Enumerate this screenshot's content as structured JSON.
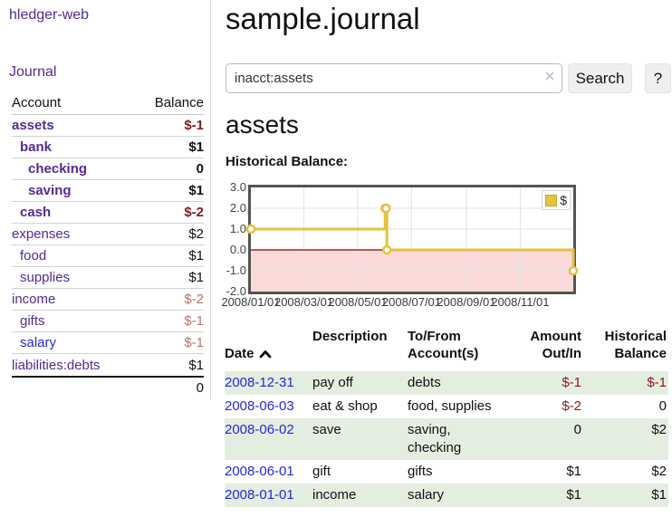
{
  "app": {
    "title": "hledger-web",
    "nav_journal": "Journal"
  },
  "colors": {
    "accent_purple": "#552a94",
    "link_blue": "#2428dc",
    "negative_strong": "#8b1a1a",
    "negative_soft": "#bd7070",
    "row_green": "#e4eee0",
    "chart_gold": "#e6c23f",
    "chart_negative_fill": "#fbdada",
    "chart_zero_line": "#8b0000",
    "grid": "#e3e3e3",
    "chart_border": "#545454"
  },
  "sidebar": {
    "header": {
      "account": "Account",
      "balance": "Balance"
    },
    "accounts": [
      {
        "name": "assets",
        "balance": "$-1",
        "indent": 1,
        "bold": true,
        "balance_style": "neg-strong"
      },
      {
        "name": "bank",
        "balance": "$1",
        "indent": 2,
        "bold": true,
        "balance_style": "normal"
      },
      {
        "name": "checking",
        "balance": "0",
        "indent": 3,
        "bold": true,
        "balance_style": "normal"
      },
      {
        "name": "saving",
        "balance": "$1",
        "indent": 3,
        "bold": true,
        "balance_style": "normal"
      },
      {
        "name": "cash",
        "balance": "$-2",
        "indent": 2,
        "bold": true,
        "balance_style": "neg-strong"
      },
      {
        "name": "expenses",
        "balance": "$2",
        "indent": 1,
        "bold": false,
        "balance_style": "normal"
      },
      {
        "name": "food",
        "balance": "$1",
        "indent": 2,
        "bold": false,
        "balance_style": "normal"
      },
      {
        "name": "supplies",
        "balance": "$1",
        "indent": 2,
        "bold": false,
        "balance_style": "normal"
      },
      {
        "name": "income",
        "balance": "$-2",
        "indent": 1,
        "bold": false,
        "balance_style": "neg-soft"
      },
      {
        "name": "gifts",
        "balance": "$-1",
        "indent": 2,
        "bold": false,
        "balance_style": "neg-soft"
      },
      {
        "name": "salary",
        "balance": "$-1",
        "indent": 2,
        "bold": false,
        "balance_style": "neg-soft",
        "link_style": "unvisited"
      },
      {
        "name": "liabilities:debts",
        "balance": "$1",
        "indent": 1,
        "bold": false,
        "balance_style": "normal"
      }
    ],
    "total": "0"
  },
  "header": {
    "title": "sample.journal"
  },
  "search": {
    "query": "inacct:assets",
    "clear_icon": "×",
    "button": "Search",
    "help_button": "?"
  },
  "account_page": {
    "heading": "assets",
    "chart_label": "Historical Balance:"
  },
  "chart_data": {
    "type": "line",
    "step": true,
    "title": "Historical Balance",
    "x_range": [
      "2008-01-01",
      "2008-12-31"
    ],
    "ylim": [
      -2,
      3
    ],
    "yticks": [
      "3.0",
      "2.0",
      "1.0",
      "0.0",
      "-1.0",
      "-2.0"
    ],
    "xticks": [
      "2008/01/01",
      "2008/03/01",
      "2008/05/01",
      "2008/07/01",
      "2008/09/01",
      "2008/11/01"
    ],
    "series": [
      {
        "name": "$",
        "color": "#e6c23f",
        "points": [
          [
            "2008-01-01",
            1
          ],
          [
            "2008-06-01",
            2
          ],
          [
            "2008-06-02",
            2
          ],
          [
            "2008-06-03",
            0
          ],
          [
            "2008-12-31",
            -1
          ]
        ]
      }
    ],
    "legend": {
      "label": "$",
      "position": "top-right"
    },
    "negative_region_fill": "#fbdada",
    "zero_line_color": "#8b0000",
    "grid": true
  },
  "register": {
    "headers": {
      "date": "Date",
      "description": "Description",
      "account": "To/From\nAccount(s)",
      "amount": "Amount\nOut/In",
      "balance": "Historical\nBalance"
    },
    "rows": [
      {
        "date": "2008-12-31",
        "description": "pay off",
        "accounts": "debts",
        "amount": "$-1",
        "amount_negative": true,
        "balance": "$-1",
        "balance_negative": true
      },
      {
        "date": "2008-06-03",
        "description": "eat & shop",
        "accounts": "food, supplies",
        "amount": "$-2",
        "amount_negative": true,
        "balance": "0",
        "balance_negative": false
      },
      {
        "date": "2008-06-02",
        "description": "save",
        "accounts": "saving,\nchecking",
        "amount": "0",
        "amount_negative": false,
        "balance": "$2",
        "balance_negative": false
      },
      {
        "date": "2008-06-01",
        "description": "gift",
        "accounts": "gifts",
        "amount": "$1",
        "amount_negative": false,
        "balance": "$2",
        "balance_negative": false
      },
      {
        "date": "2008-01-01",
        "description": "income",
        "accounts": "salary",
        "amount": "$1",
        "amount_negative": false,
        "balance": "$1",
        "balance_negative": false
      }
    ]
  }
}
